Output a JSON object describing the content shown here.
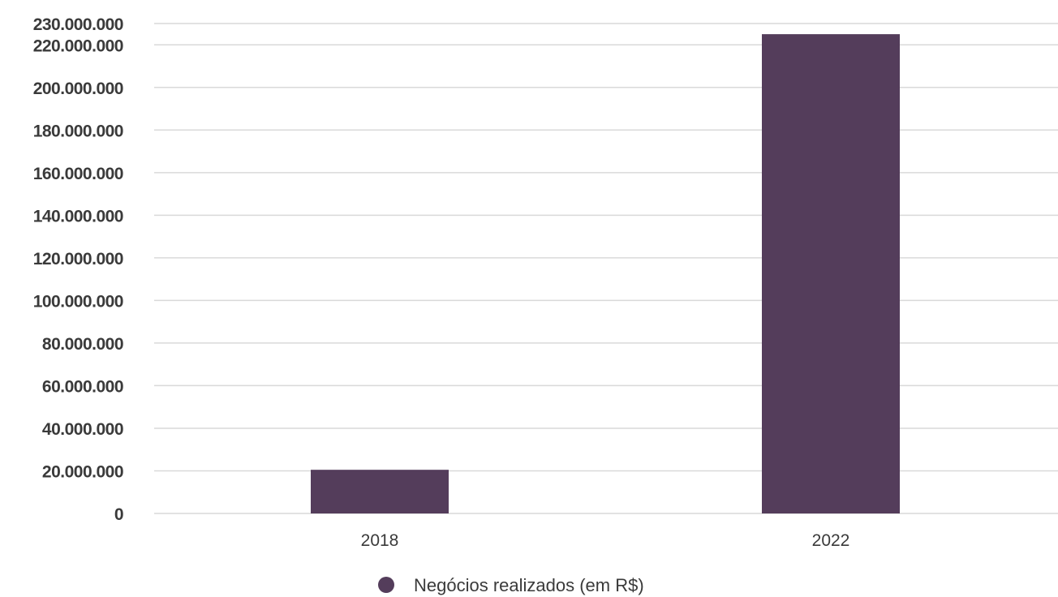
{
  "chart_data": {
    "type": "bar",
    "categories": [
      "2018",
      "2022"
    ],
    "series": [
      {
        "name": "Negócios realizados (em R$)",
        "values": [
          20500000,
          225000000
        ],
        "color": "#543D5B"
      }
    ],
    "yticks": [
      0,
      20000000,
      40000000,
      60000000,
      80000000,
      100000000,
      120000000,
      140000000,
      160000000,
      180000000,
      200000000,
      220000000,
      230000000
    ],
    "ytick_labels": [
      "0",
      "20.000.000",
      "40.000.000",
      "60.000.000",
      "80.000.000",
      "100.000.000",
      "120.000.000",
      "140.000.000",
      "160.000.000",
      "180.000.000",
      "200.000.000",
      "220.000.000",
      "230.000.000"
    ],
    "ylim": [
      0,
      230000000
    ],
    "grid": true,
    "gridline_color": "#d9d9d9",
    "legend_position": "bottom"
  }
}
